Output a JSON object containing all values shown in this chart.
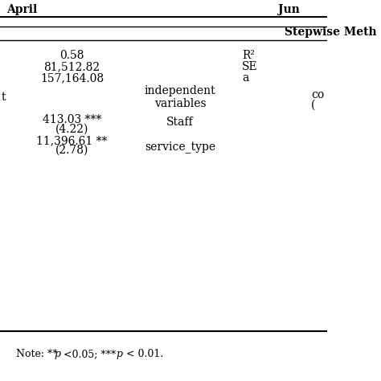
{
  "title_left": "April",
  "title_right": "Jun",
  "subheader": "Stepwise Meth",
  "r_squared_label": "R²",
  "se_label": "SE",
  "a_label": "a",
  "r_squared_value": "0.58",
  "se_value": "81,512.82",
  "a_value": "157,164.08",
  "left_partial": "t",
  "ind_var_header": "independent\nvariables",
  "coeff_partial": "co\n(",
  "staff_label": "Staff",
  "service_type_label": "service_type",
  "coeff1": "413.03 ***",
  "tstat1": "(4.22)",
  "coeff2": "11,396.61 **",
  "tstat2": "(2.78)",
  "note": "Note: ** p <0.05; *** p < 0.01.",
  "bg_color": "#ffffff",
  "text_color": "#000000",
  "font_size": 10,
  "note_font_size": 9
}
